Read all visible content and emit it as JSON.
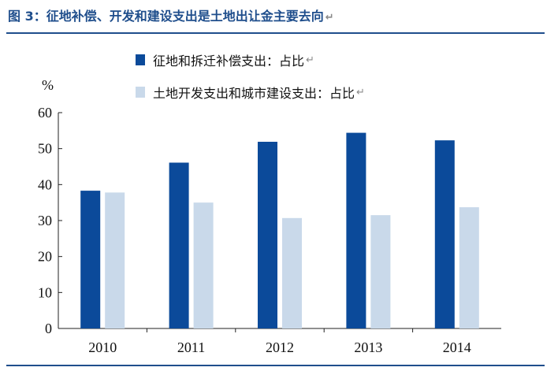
{
  "title": "图 3：征地补偿、开发和建设支出是土地出让金主要去向",
  "return_mark": "↵",
  "chart_data": {
    "type": "bar",
    "categories": [
      "2010",
      "2011",
      "2012",
      "2013",
      "2014"
    ],
    "series": [
      {
        "name": "征地和拆迁补偿支出：占比",
        "color": "#0b4a9a",
        "values": [
          38.3,
          46.1,
          51.9,
          54.4,
          52.3
        ]
      },
      {
        "name": "土地开发支出和城市建设支出：占比",
        "color": "#c9d9ea",
        "values": [
          37.8,
          35.0,
          30.7,
          31.5,
          33.7
        ]
      }
    ],
    "ylabel": "%",
    "ylim": [
      0,
      60
    ],
    "yticks": [
      0,
      10,
      20,
      30,
      40,
      50,
      60
    ],
    "grid": false,
    "legend": "top"
  }
}
